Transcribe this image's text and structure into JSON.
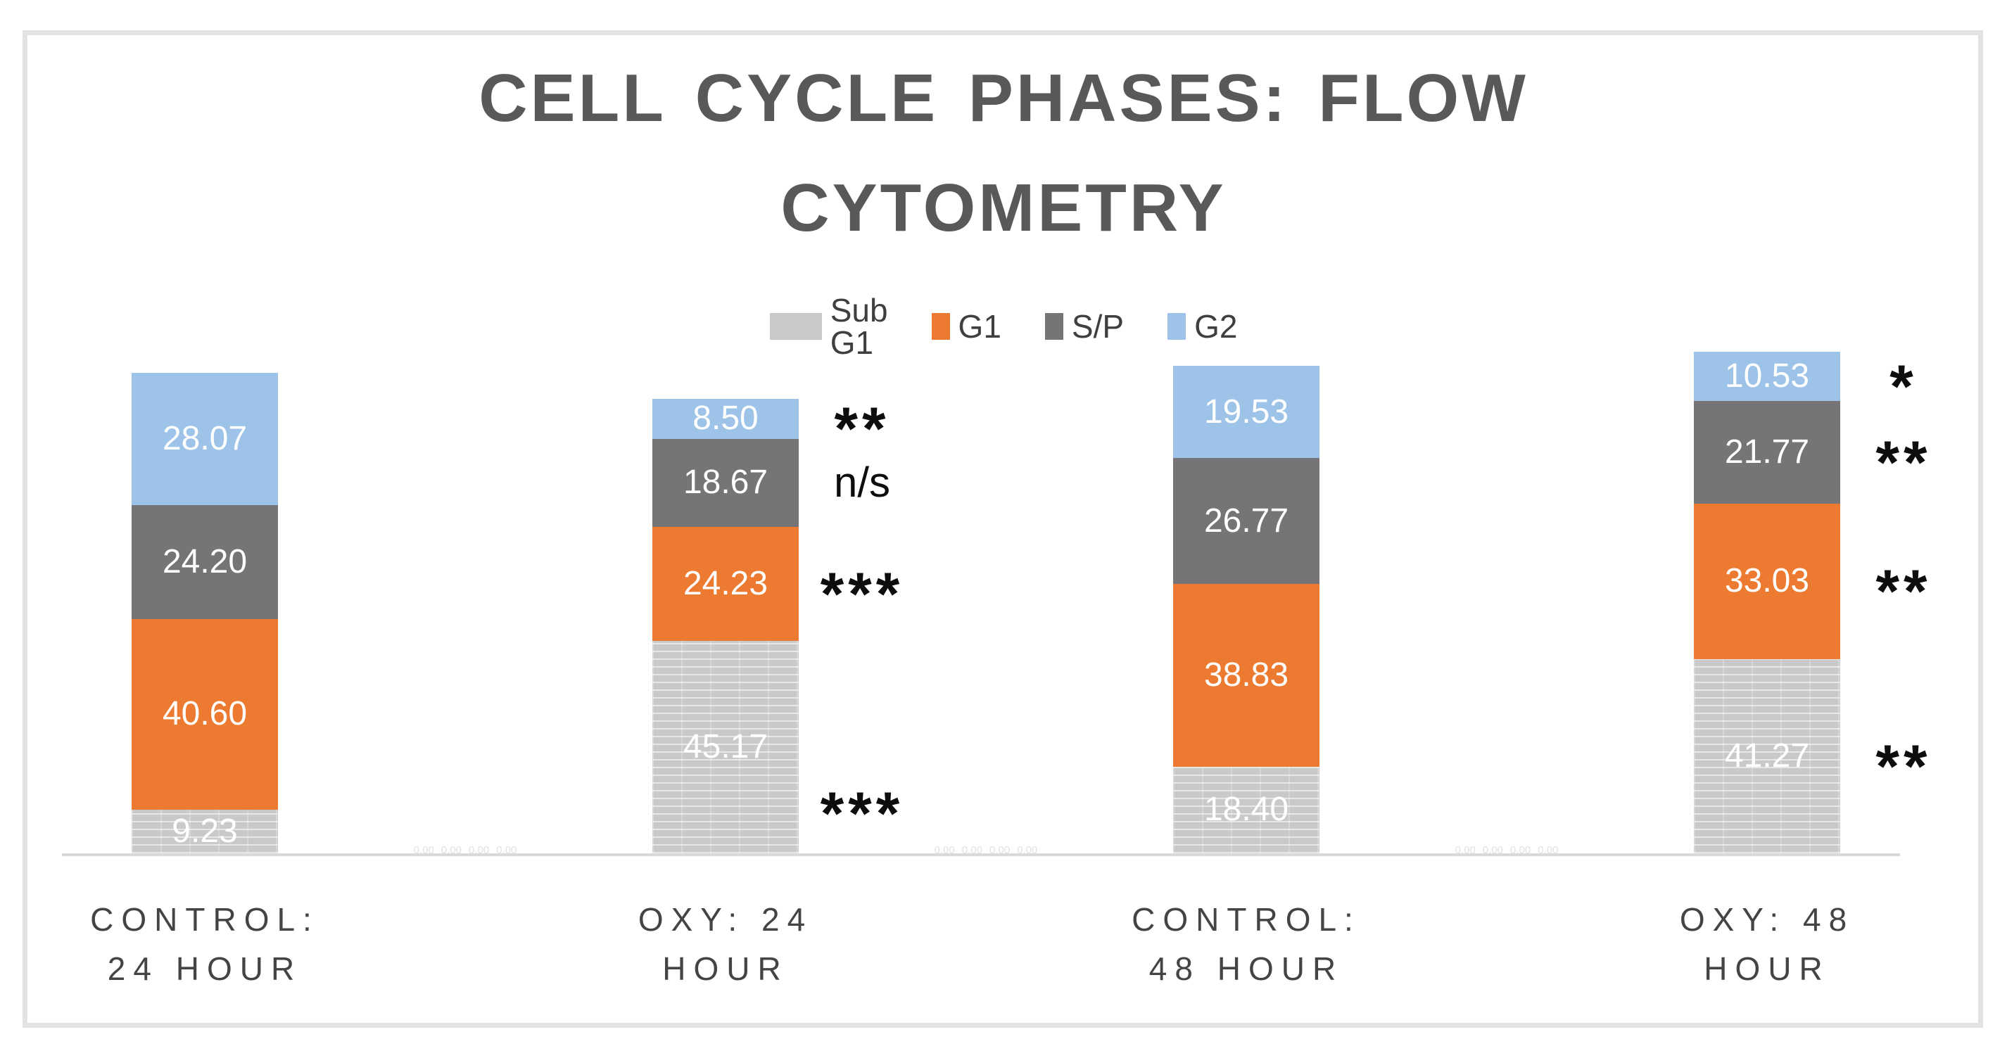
{
  "chart_data": {
    "type": "bar",
    "subtype": "stacked",
    "title": "CELL CYCLE PHASES: FLOW CYTOMETRY",
    "title_lines": [
      "CELL CYCLE PHASES: FLOW",
      "CYTOMETRY"
    ],
    "categories": [
      "CONTROL: 24 HOUR",
      "OXY: 24 HOUR",
      "CONTROL: 48 HOUR",
      "OXY: 48 HOUR"
    ],
    "category_lines": [
      [
        "CONTROL:",
        "24 HOUR"
      ],
      [
        "OXY: 24",
        "HOUR"
      ],
      [
        "CONTROL:",
        "48 HOUR"
      ],
      [
        "OXY: 48",
        "HOUR"
      ]
    ],
    "stack_order_bottom_to_top": [
      "Sub G1",
      "G1",
      "S/P",
      "G2"
    ],
    "series": [
      {
        "name": "Sub G1",
        "color": "#C9C9C9",
        "pattern": "horizontal-lines",
        "values": [
          9.23,
          45.17,
          18.4,
          41.27
        ]
      },
      {
        "name": "G1",
        "color": "#ED7A31",
        "pattern": null,
        "values": [
          40.6,
          24.23,
          38.83,
          33.03
        ]
      },
      {
        "name": "S/P",
        "color": "#767476",
        "pattern": null,
        "values": [
          24.2,
          18.67,
          26.77,
          21.77
        ]
      },
      {
        "name": "G2",
        "color": "#9DC3E8",
        "pattern": null,
        "values": [
          28.07,
          8.5,
          19.53,
          10.53
        ]
      }
    ],
    "value_label_format": "0.00",
    "value_label_color": "#FFFFFF",
    "legend_position": "top-center",
    "gridlines": false,
    "y_axis_visible": false,
    "x_axis_line_color": "#D9D9D9",
    "baseline_zero_label_text": "0.00",
    "annotations": [
      {
        "category": 1,
        "series": 0,
        "text": "***",
        "style": "asterisk",
        "dy": 80
      },
      {
        "category": 1,
        "series": 1,
        "text": "***",
        "style": "asterisk",
        "dy": 0
      },
      {
        "category": 1,
        "series": 2,
        "text": "n/s",
        "style": "text",
        "dy": 0
      },
      {
        "category": 1,
        "series": 3,
        "text": "**",
        "style": "asterisk",
        "dy": 0
      },
      {
        "category": 3,
        "series": 0,
        "text": "**",
        "style": "asterisk",
        "dy": 0
      },
      {
        "category": 3,
        "series": 1,
        "text": "**",
        "style": "asterisk",
        "dy": 0
      },
      {
        "category": 3,
        "series": 2,
        "text": "**",
        "style": "asterisk",
        "dy": 0
      },
      {
        "category": 3,
        "series": 3,
        "text": "*",
        "style": "asterisk",
        "dy": 0
      }
    ]
  }
}
